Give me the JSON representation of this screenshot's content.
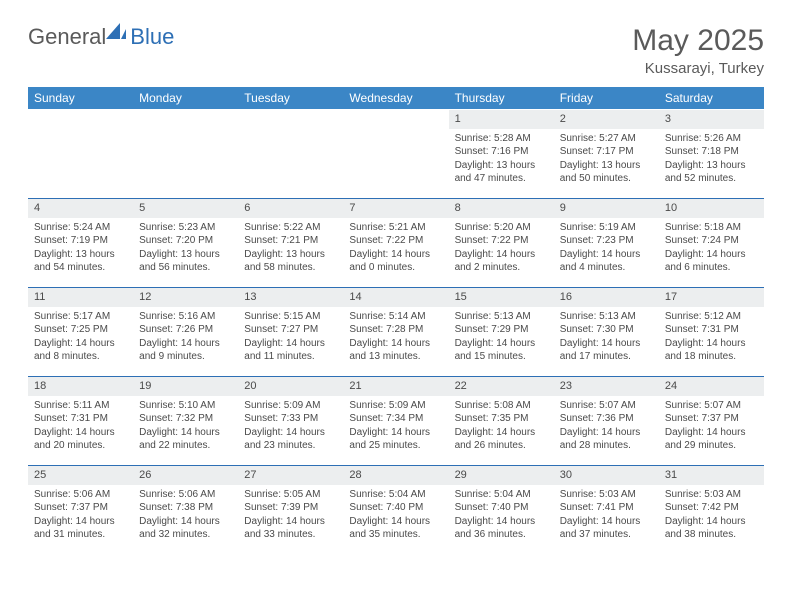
{
  "logo": {
    "text1": "General",
    "text2": "Blue"
  },
  "title": "May 2025",
  "location": "Kussarayi, Turkey",
  "colors": {
    "header_bg": "#3b86c6",
    "header_text": "#ffffff",
    "border": "#2d6fb5",
    "daynum_bg": "#eceeef",
    "text": "#4a4a4a"
  },
  "daysOfWeek": [
    "Sunday",
    "Monday",
    "Tuesday",
    "Wednesday",
    "Thursday",
    "Friday",
    "Saturday"
  ],
  "weeks": [
    [
      null,
      null,
      null,
      null,
      {
        "n": "1",
        "sr": "Sunrise: 5:28 AM",
        "ss": "Sunset: 7:16 PM",
        "dl1": "Daylight: 13 hours",
        "dl2": "and 47 minutes."
      },
      {
        "n": "2",
        "sr": "Sunrise: 5:27 AM",
        "ss": "Sunset: 7:17 PM",
        "dl1": "Daylight: 13 hours",
        "dl2": "and 50 minutes."
      },
      {
        "n": "3",
        "sr": "Sunrise: 5:26 AM",
        "ss": "Sunset: 7:18 PM",
        "dl1": "Daylight: 13 hours",
        "dl2": "and 52 minutes."
      }
    ],
    [
      {
        "n": "4",
        "sr": "Sunrise: 5:24 AM",
        "ss": "Sunset: 7:19 PM",
        "dl1": "Daylight: 13 hours",
        "dl2": "and 54 minutes."
      },
      {
        "n": "5",
        "sr": "Sunrise: 5:23 AM",
        "ss": "Sunset: 7:20 PM",
        "dl1": "Daylight: 13 hours",
        "dl2": "and 56 minutes."
      },
      {
        "n": "6",
        "sr": "Sunrise: 5:22 AM",
        "ss": "Sunset: 7:21 PM",
        "dl1": "Daylight: 13 hours",
        "dl2": "and 58 minutes."
      },
      {
        "n": "7",
        "sr": "Sunrise: 5:21 AM",
        "ss": "Sunset: 7:22 PM",
        "dl1": "Daylight: 14 hours",
        "dl2": "and 0 minutes."
      },
      {
        "n": "8",
        "sr": "Sunrise: 5:20 AM",
        "ss": "Sunset: 7:22 PM",
        "dl1": "Daylight: 14 hours",
        "dl2": "and 2 minutes."
      },
      {
        "n": "9",
        "sr": "Sunrise: 5:19 AM",
        "ss": "Sunset: 7:23 PM",
        "dl1": "Daylight: 14 hours",
        "dl2": "and 4 minutes."
      },
      {
        "n": "10",
        "sr": "Sunrise: 5:18 AM",
        "ss": "Sunset: 7:24 PM",
        "dl1": "Daylight: 14 hours",
        "dl2": "and 6 minutes."
      }
    ],
    [
      {
        "n": "11",
        "sr": "Sunrise: 5:17 AM",
        "ss": "Sunset: 7:25 PM",
        "dl1": "Daylight: 14 hours",
        "dl2": "and 8 minutes."
      },
      {
        "n": "12",
        "sr": "Sunrise: 5:16 AM",
        "ss": "Sunset: 7:26 PM",
        "dl1": "Daylight: 14 hours",
        "dl2": "and 9 minutes."
      },
      {
        "n": "13",
        "sr": "Sunrise: 5:15 AM",
        "ss": "Sunset: 7:27 PM",
        "dl1": "Daylight: 14 hours",
        "dl2": "and 11 minutes."
      },
      {
        "n": "14",
        "sr": "Sunrise: 5:14 AM",
        "ss": "Sunset: 7:28 PM",
        "dl1": "Daylight: 14 hours",
        "dl2": "and 13 minutes."
      },
      {
        "n": "15",
        "sr": "Sunrise: 5:13 AM",
        "ss": "Sunset: 7:29 PM",
        "dl1": "Daylight: 14 hours",
        "dl2": "and 15 minutes."
      },
      {
        "n": "16",
        "sr": "Sunrise: 5:13 AM",
        "ss": "Sunset: 7:30 PM",
        "dl1": "Daylight: 14 hours",
        "dl2": "and 17 minutes."
      },
      {
        "n": "17",
        "sr": "Sunrise: 5:12 AM",
        "ss": "Sunset: 7:31 PM",
        "dl1": "Daylight: 14 hours",
        "dl2": "and 18 minutes."
      }
    ],
    [
      {
        "n": "18",
        "sr": "Sunrise: 5:11 AM",
        "ss": "Sunset: 7:31 PM",
        "dl1": "Daylight: 14 hours",
        "dl2": "and 20 minutes."
      },
      {
        "n": "19",
        "sr": "Sunrise: 5:10 AM",
        "ss": "Sunset: 7:32 PM",
        "dl1": "Daylight: 14 hours",
        "dl2": "and 22 minutes."
      },
      {
        "n": "20",
        "sr": "Sunrise: 5:09 AM",
        "ss": "Sunset: 7:33 PM",
        "dl1": "Daylight: 14 hours",
        "dl2": "and 23 minutes."
      },
      {
        "n": "21",
        "sr": "Sunrise: 5:09 AM",
        "ss": "Sunset: 7:34 PM",
        "dl1": "Daylight: 14 hours",
        "dl2": "and 25 minutes."
      },
      {
        "n": "22",
        "sr": "Sunrise: 5:08 AM",
        "ss": "Sunset: 7:35 PM",
        "dl1": "Daylight: 14 hours",
        "dl2": "and 26 minutes."
      },
      {
        "n": "23",
        "sr": "Sunrise: 5:07 AM",
        "ss": "Sunset: 7:36 PM",
        "dl1": "Daylight: 14 hours",
        "dl2": "and 28 minutes."
      },
      {
        "n": "24",
        "sr": "Sunrise: 5:07 AM",
        "ss": "Sunset: 7:37 PM",
        "dl1": "Daylight: 14 hours",
        "dl2": "and 29 minutes."
      }
    ],
    [
      {
        "n": "25",
        "sr": "Sunrise: 5:06 AM",
        "ss": "Sunset: 7:37 PM",
        "dl1": "Daylight: 14 hours",
        "dl2": "and 31 minutes."
      },
      {
        "n": "26",
        "sr": "Sunrise: 5:06 AM",
        "ss": "Sunset: 7:38 PM",
        "dl1": "Daylight: 14 hours",
        "dl2": "and 32 minutes."
      },
      {
        "n": "27",
        "sr": "Sunrise: 5:05 AM",
        "ss": "Sunset: 7:39 PM",
        "dl1": "Daylight: 14 hours",
        "dl2": "and 33 minutes."
      },
      {
        "n": "28",
        "sr": "Sunrise: 5:04 AM",
        "ss": "Sunset: 7:40 PM",
        "dl1": "Daylight: 14 hours",
        "dl2": "and 35 minutes."
      },
      {
        "n": "29",
        "sr": "Sunrise: 5:04 AM",
        "ss": "Sunset: 7:40 PM",
        "dl1": "Daylight: 14 hours",
        "dl2": "and 36 minutes."
      },
      {
        "n": "30",
        "sr": "Sunrise: 5:03 AM",
        "ss": "Sunset: 7:41 PM",
        "dl1": "Daylight: 14 hours",
        "dl2": "and 37 minutes."
      },
      {
        "n": "31",
        "sr": "Sunrise: 5:03 AM",
        "ss": "Sunset: 7:42 PM",
        "dl1": "Daylight: 14 hours",
        "dl2": "and 38 minutes."
      }
    ]
  ]
}
